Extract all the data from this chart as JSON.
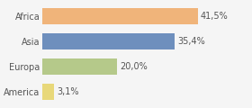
{
  "categories": [
    "America",
    "Europa",
    "Asia",
    "Africa"
  ],
  "values": [
    3.1,
    20.0,
    35.4,
    41.5
  ],
  "labels": [
    "3,1%",
    "20,0%",
    "35,4%",
    "41,5%"
  ],
  "bar_colors": [
    "#e8d87a",
    "#b5c98a",
    "#6e8fbd",
    "#f0b47a"
  ],
  "background_color": "#f5f5f5",
  "xlim": [
    0,
    55
  ],
  "bar_height": 0.62
}
